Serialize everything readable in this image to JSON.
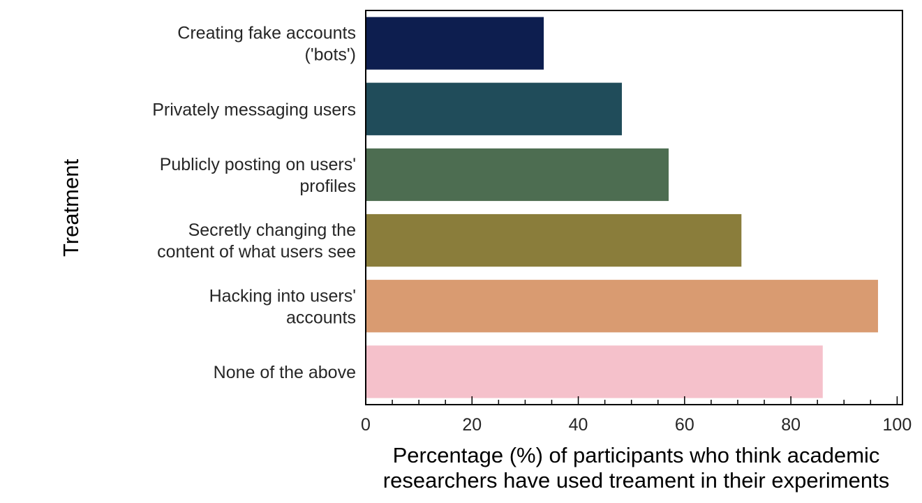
{
  "chart_data": {
    "type": "bar",
    "orientation": "horizontal",
    "categories": [
      [
        "Creating fake accounts",
        "('bots')"
      ],
      [
        "Privately messaging users"
      ],
      [
        "Publicly posting on users'",
        "profiles"
      ],
      [
        "Secretly changing the",
        "content of what users see"
      ],
      [
        "Hacking into users'",
        "accounts"
      ],
      [
        "None of the above"
      ]
    ],
    "values": [
      33.5,
      48.2,
      57.0,
      70.7,
      96.4,
      86.0
    ],
    "colors": [
      "#0d1e4f",
      "#204c5a",
      "#4d6d51",
      "#8a7d3b",
      "#d99b71",
      "#f5c1cb"
    ],
    "xlim": [
      0,
      101
    ],
    "xticks": [
      0,
      20,
      40,
      60,
      80,
      100
    ],
    "xlabel": [
      "Percentage (%) of participants who think academic",
      "researchers have used treament in their experiments"
    ],
    "ylabel": "Treatment",
    "grid": false
  }
}
